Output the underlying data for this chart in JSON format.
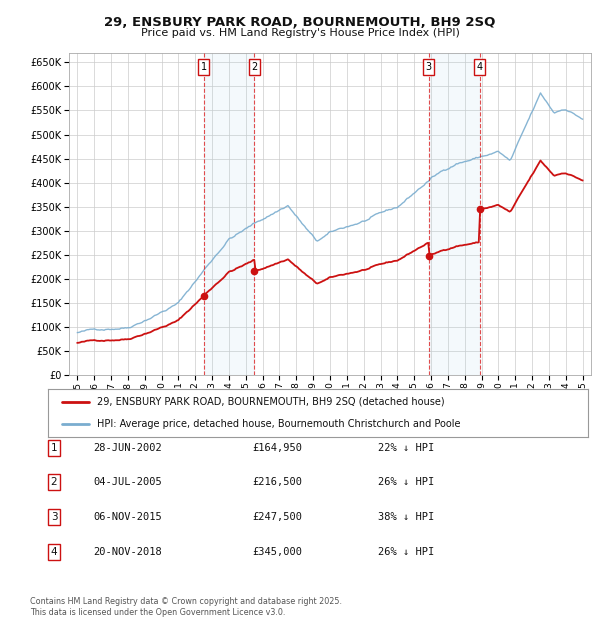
{
  "title": "29, ENSBURY PARK ROAD, BOURNEMOUTH, BH9 2SQ",
  "subtitle": "Price paid vs. HM Land Registry's House Price Index (HPI)",
  "background_color": "#ffffff",
  "plot_bg_color": "#ffffff",
  "grid_color": "#cccccc",
  "hpi_line_color": "#7aadcf",
  "price_line_color": "#cc1111",
  "sale_marker_color": "#cc1111",
  "transactions": [
    {
      "num": 1,
      "date_str": "28-JUN-2002",
      "date_x": 2002.49,
      "price": 164950
    },
    {
      "num": 2,
      "date_str": "04-JUL-2005",
      "date_x": 2005.51,
      "price": 216500
    },
    {
      "num": 3,
      "date_str": "06-NOV-2015",
      "date_x": 2015.85,
      "price": 247500
    },
    {
      "num": 4,
      "date_str": "20-NOV-2018",
      "date_x": 2018.88,
      "price": 345000
    }
  ],
  "ylim": [
    0,
    670000
  ],
  "yticks": [
    0,
    50000,
    100000,
    150000,
    200000,
    250000,
    300000,
    350000,
    400000,
    450000,
    500000,
    550000,
    600000,
    650000
  ],
  "xlim": [
    1994.5,
    2025.5
  ],
  "xticks": [
    1995,
    1996,
    1997,
    1998,
    1999,
    2000,
    2001,
    2002,
    2003,
    2004,
    2005,
    2006,
    2007,
    2008,
    2009,
    2010,
    2011,
    2012,
    2013,
    2014,
    2015,
    2016,
    2017,
    2018,
    2019,
    2020,
    2021,
    2022,
    2023,
    2024,
    2025
  ],
  "legend_line1": "29, ENSBURY PARK ROAD, BOURNEMOUTH, BH9 2SQ (detached house)",
  "legend_line2": "HPI: Average price, detached house, Bournemouth Christchurch and Poole",
  "footnote": "Contains HM Land Registry data © Crown copyright and database right 2025.\nThis data is licensed under the Open Government Licence v3.0.",
  "table_rows": [
    [
      "1",
      "28-JUN-2002",
      "£164,950",
      "22% ↓ HPI"
    ],
    [
      "2",
      "04-JUL-2005",
      "£216,500",
      "26% ↓ HPI"
    ],
    [
      "3",
      "06-NOV-2015",
      "£247,500",
      "38% ↓ HPI"
    ],
    [
      "4",
      "20-NOV-2018",
      "£345,000",
      "26% ↓ HPI"
    ]
  ]
}
